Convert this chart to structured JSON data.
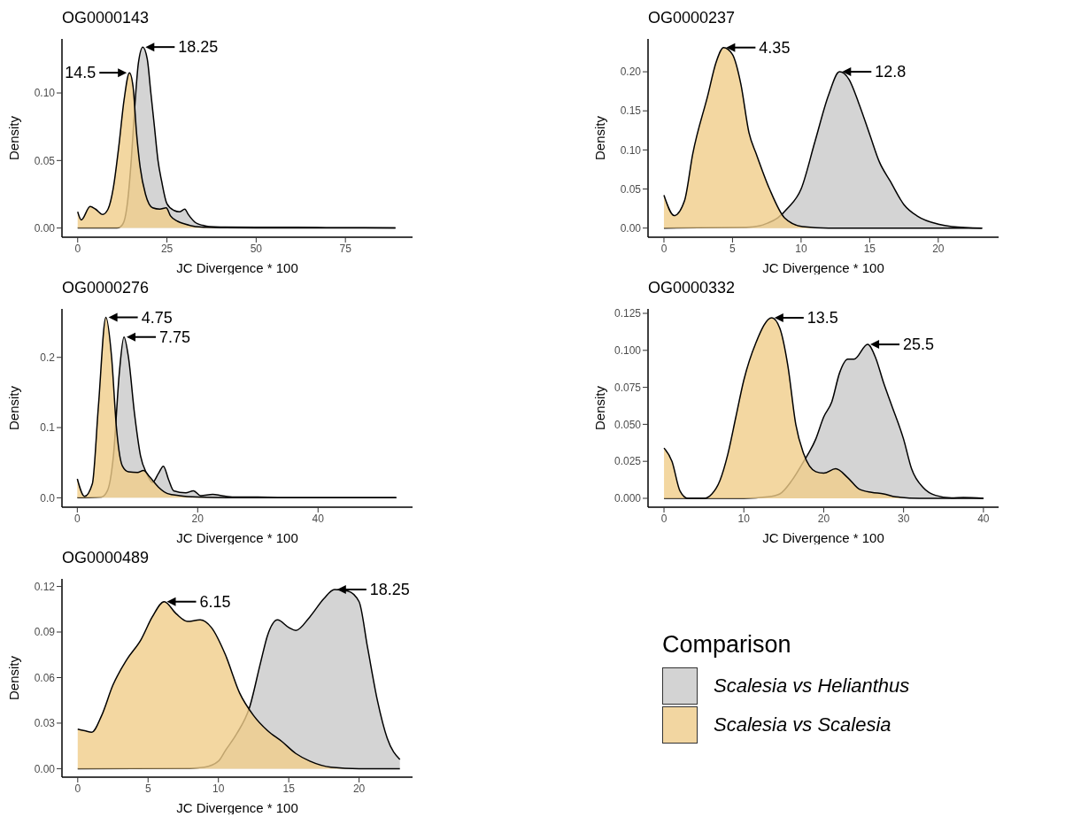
{
  "chart_data": [
    {
      "type": "area",
      "title": "OG0000143",
      "xlabel": "JC Divergence * 100",
      "ylabel": "Density",
      "xlim": [
        -4.4,
        93.8
      ],
      "ylim": [
        -0.0068,
        0.14
      ],
      "xticks": [
        0,
        25,
        50,
        75
      ],
      "yticks": [
        {
          "value": 0,
          "label": "0.00"
        },
        0.05,
        {
          "value": 0.1,
          "label": "0.10"
        }
      ],
      "series": [
        {
          "color": "#c9c9c9",
          "x": [
            0,
            11,
            12,
            13,
            14,
            15,
            16,
            17,
            18.25,
            19.5,
            20.5,
            21.5,
            22.5,
            23.5,
            25,
            27,
            28.5,
            30,
            31,
            33,
            35,
            37,
            40,
            50,
            60,
            70,
            80,
            89
          ],
          "values": [
            0,
            0,
            0.001,
            0.005,
            0.02,
            0.05,
            0.09,
            0.122,
            0.134,
            0.125,
            0.1,
            0.075,
            0.05,
            0.035,
            0.018,
            0.013,
            0.012,
            0.014,
            0.01,
            0.004,
            0.002,
            0.001,
            0.0007,
            0.0005,
            0.0005,
            0.0003,
            0.0002,
            0.0001
          ]
        },
        {
          "color": "#f0cd8a",
          "x": [
            0,
            1,
            3.5,
            5,
            7,
            8.5,
            10,
            11.5,
            13,
            14.5,
            15.5,
            16.5,
            17.5,
            19,
            21,
            23,
            24.8,
            26,
            28,
            30,
            33,
            36,
            40,
            50,
            89
          ],
          "values": [
            0.012,
            0.006,
            0.016,
            0.014,
            0.01,
            0.014,
            0.03,
            0.06,
            0.095,
            0.115,
            0.105,
            0.07,
            0.045,
            0.025,
            0.015,
            0.014,
            0.015,
            0.009,
            0.005,
            0.003,
            0.001,
            0.0005,
            0.0002,
            0.0001,
            0
          ]
        }
      ],
      "annotations": [
        {
          "text": "18.25",
          "x": 18.25,
          "y": 0.134
        },
        {
          "text": "14.5",
          "x": 14.5,
          "y": 0.115
        }
      ]
    },
    {
      "type": "area",
      "title": "OG0000237",
      "xlabel": "JC Divergence * 100",
      "ylabel": "Density",
      "xlim": [
        -1.16,
        24.4
      ],
      "ylim": [
        -0.0117,
        0.242
      ],
      "xticks": [
        0,
        5,
        10,
        15,
        20
      ],
      "yticks": [
        {
          "value": 0,
          "label": "0.00"
        },
        0.05,
        {
          "value": 0.1,
          "label": "0.10"
        },
        0.15,
        {
          "value": 0.2,
          "label": "0.20"
        }
      ],
      "series": [
        {
          "color": "#c9c9c9",
          "x": [
            0,
            6,
            7,
            7.5,
            8.3,
            9,
            10,
            11,
            12,
            12.8,
            13.5,
            14.2,
            15,
            15.7,
            16.5,
            17.5,
            18.5,
            20,
            21,
            23.2
          ],
          "values": [
            0,
            0.001,
            0.003,
            0.006,
            0.013,
            0.025,
            0.05,
            0.11,
            0.17,
            0.2,
            0.19,
            0.16,
            0.12,
            0.085,
            0.06,
            0.03,
            0.015,
            0.005,
            0.002,
            0
          ]
        },
        {
          "color": "#f0cd8a",
          "x": [
            0,
            0.75,
            1.5,
            2.1,
            3.2,
            3.8,
            4.35,
            5,
            5.6,
            6.2,
            6.75,
            7.7,
            8.8,
            10.1,
            12,
            23.2
          ],
          "values": [
            0.042,
            0.016,
            0.035,
            0.095,
            0.17,
            0.212,
            0.231,
            0.222,
            0.185,
            0.122,
            0.094,
            0.05,
            0.013,
            0.002,
            0,
            0
          ]
        }
      ],
      "annotations": [
        {
          "text": "4.35",
          "x": 4.35,
          "y": 0.231
        },
        {
          "text": "12.8",
          "x": 12.8,
          "y": 0.2
        }
      ]
    },
    {
      "type": "area",
      "title": "OG0000276",
      "xlabel": "JC Divergence * 100",
      "ylabel": "Density",
      "xlim": [
        -2.55,
        55.7
      ],
      "ylim": [
        -0.0134,
        0.269
      ],
      "xticks": [
        0,
        20,
        40
      ],
      "yticks": [
        {
          "value": 0,
          "label": "0.0"
        },
        0.1,
        0.2
      ],
      "series": [
        {
          "color": "#c9c9c9",
          "x": [
            0,
            4,
            5,
            6,
            7,
            7.75,
            8.5,
            9.5,
            10.5,
            11.5,
            12.5,
            13.5,
            14.3,
            15.2,
            16,
            18,
            19.3,
            20.5,
            22.5,
            24,
            26,
            30,
            35,
            53
          ],
          "values": [
            0,
            0.001,
            0.01,
            0.06,
            0.18,
            0.229,
            0.2,
            0.12,
            0.06,
            0.035,
            0.022,
            0.035,
            0.045,
            0.025,
            0.01,
            0.007,
            0.01,
            0.003,
            0.005,
            0.003,
            0.001,
            0.001,
            0,
            0
          ]
        },
        {
          "color": "#f0cd8a",
          "x": [
            0,
            1.2,
            2.5,
            3.5,
            4.75,
            5.7,
            6.5,
            7.5,
            8.5,
            10,
            11,
            12,
            13.5,
            15,
            17,
            20,
            25,
            53
          ],
          "values": [
            0.027,
            0.002,
            0.02,
            0.13,
            0.257,
            0.2,
            0.1,
            0.045,
            0.037,
            0.036,
            0.039,
            0.03,
            0.015,
            0.006,
            0.003,
            0.001,
            0,
            0
          ]
        }
      ],
      "annotations": [
        {
          "text": "4.75",
          "x": 4.75,
          "y": 0.257
        },
        {
          "text": "7.75",
          "x": 7.75,
          "y": 0.229
        }
      ]
    },
    {
      "type": "area",
      "title": "OG0000332",
      "xlabel": "JC Divergence * 100",
      "ylabel": "Density",
      "xlim": [
        -2,
        41.9
      ],
      "ylim": [
        -0.006,
        0.128
      ],
      "xticks": [
        0,
        10,
        20,
        30,
        40
      ],
      "yticks": [
        {
          "value": 0,
          "label": "0.000"
        },
        {
          "value": 0.025,
          "label": "0.025"
        },
        {
          "value": 0.05,
          "label": "0.050"
        },
        {
          "value": 0.075,
          "label": "0.075"
        },
        {
          "value": 0.1,
          "label": "0.100"
        },
        {
          "value": 0.125,
          "label": "0.125"
        }
      ],
      "series": [
        {
          "color": "#c9c9c9",
          "x": [
            0,
            10,
            13,
            14.5,
            16,
            17.5,
            19,
            20,
            21,
            22,
            23,
            23.8,
            25.5,
            26.5,
            27.5,
            28.5,
            30,
            31,
            32.5,
            34,
            36,
            37.5,
            40
          ],
          "values": [
            0,
            0,
            0.001,
            0.003,
            0.012,
            0.025,
            0.04,
            0.055,
            0.065,
            0.085,
            0.094,
            0.094,
            0.104,
            0.095,
            0.078,
            0.063,
            0.04,
            0.02,
            0.007,
            0.002,
            0.0003,
            0.0006,
            0
          ]
        },
        {
          "color": "#f0cd8a",
          "x": [
            0,
            1,
            2,
            3,
            5,
            6,
            7,
            8,
            9,
            10,
            11.5,
            13.5,
            14.5,
            15.5,
            16.5,
            17.5,
            19,
            20,
            21.5,
            23,
            24.5,
            26,
            27.5,
            29,
            32,
            40
          ],
          "values": [
            0.034,
            0.025,
            0.005,
            0,
            0,
            0.003,
            0.012,
            0.03,
            0.055,
            0.08,
            0.105,
            0.122,
            0.115,
            0.09,
            0.05,
            0.03,
            0.018,
            0.017,
            0.02,
            0.014,
            0.006,
            0.004,
            0.003,
            0.001,
            0,
            0
          ]
        }
      ],
      "annotations": [
        {
          "text": "13.5",
          "x": 13.5,
          "y": 0.122
        },
        {
          "text": "25.5",
          "x": 25.5,
          "y": 0.104
        }
      ]
    },
    {
      "type": "area",
      "title": "OG0000489",
      "xlabel": "JC Divergence * 100",
      "ylabel": "Density",
      "xlim": [
        -1.12,
        23.8
      ],
      "ylim": [
        -0.0056,
        0.125
      ],
      "xticks": [
        0,
        5,
        10,
        15,
        20
      ],
      "yticks": [
        {
          "value": 0,
          "label": "0.00"
        },
        {
          "value": 0.03,
          "label": "0.03"
        },
        {
          "value": 0.06,
          "label": "0.06"
        },
        {
          "value": 0.09,
          "label": "0.09"
        },
        {
          "value": 0.12,
          "label": "0.12"
        }
      ],
      "legend": "right",
      "legend_title": "Comparison",
      "series": [
        {
          "name": "Scalesia vs Helianthus",
          "color": "#c9c9c9",
          "x": [
            0,
            8,
            9,
            10,
            10.5,
            11.3,
            12.2,
            13,
            13.5,
            14.2,
            15,
            15.5,
            16.5,
            17.5,
            18.25,
            19.2,
            20,
            20.6,
            21.3,
            22,
            22.9
          ],
          "values": [
            0,
            0.0003,
            0.001,
            0.005,
            0.012,
            0.023,
            0.04,
            0.07,
            0.088,
            0.098,
            0.093,
            0.091,
            0.1,
            0.112,
            0.118,
            0.117,
            0.11,
            0.08,
            0.045,
            0.02,
            0.006
          ]
        },
        {
          "name": "Scalesia vs Scalesia",
          "color": "#f0cd8a",
          "x": [
            0,
            0.5,
            1,
            1.7,
            2.5,
            3.5,
            4.5,
            5.3,
            6.15,
            7,
            7.8,
            8.7,
            9.5,
            10.5,
            11.5,
            12.5,
            13.5,
            14.5,
            15.5,
            16.5,
            18,
            20,
            22.9
          ],
          "values": [
            0.026,
            0.025,
            0.024,
            0.035,
            0.055,
            0.072,
            0.085,
            0.1,
            0.11,
            0.102,
            0.097,
            0.098,
            0.093,
            0.075,
            0.05,
            0.035,
            0.025,
            0.018,
            0.01,
            0.005,
            0.001,
            0,
            0
          ]
        }
      ],
      "annotations": [
        {
          "text": "6.15",
          "x": 6.15,
          "y": 0.11
        },
        {
          "text": "18.25",
          "x": 18.25,
          "y": 0.118
        }
      ]
    }
  ]
}
